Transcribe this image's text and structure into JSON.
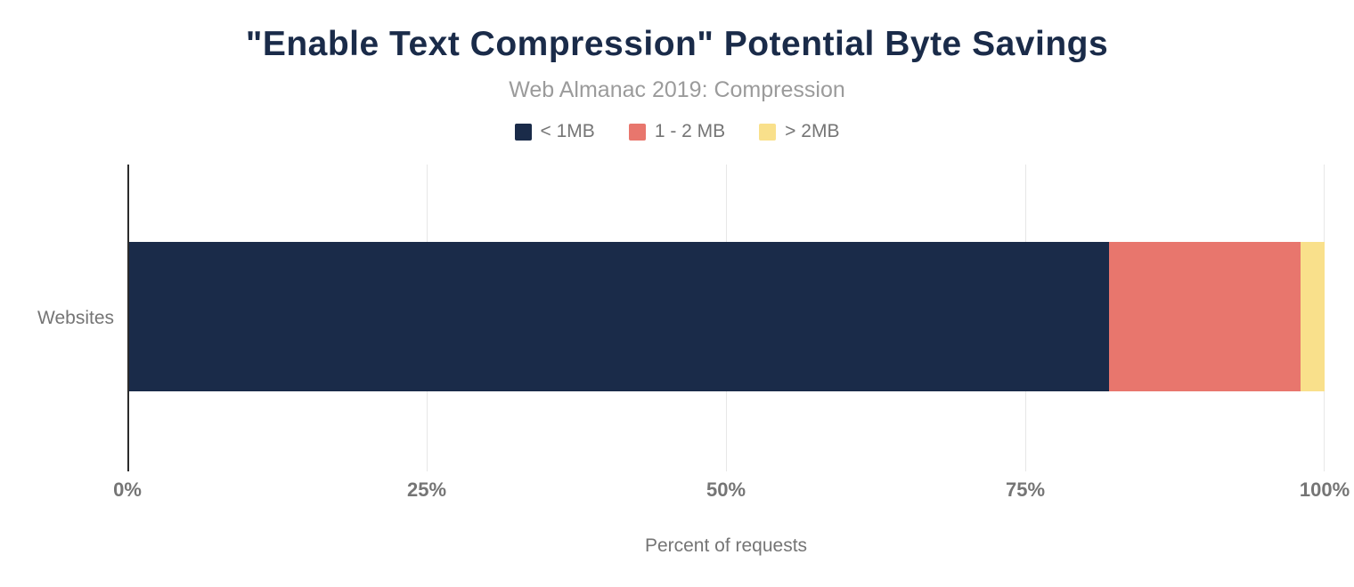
{
  "title": "\"Enable Text Compression\" Potential Byte Savings",
  "subtitle": "Web Almanac 2019: Compression",
  "legend": [
    {
      "label": "< 1MB",
      "color": "#1a2b49"
    },
    {
      "label": "1 - 2 MB",
      "color": "#e8766d"
    },
    {
      "label": "> 2MB",
      "color": "#f9e08b"
    }
  ],
  "colors": {
    "title": "#1a2b49",
    "subtitle": "#9b9b9b",
    "axis_text": "#757575",
    "gridline": "#e7e7e7",
    "axis_line": "#2b2b2b",
    "background": "#ffffff"
  },
  "chart_data": {
    "type": "bar",
    "orientation": "horizontal",
    "stacked": true,
    "title": "\"Enable Text Compression\" Potential Byte Savings",
    "subtitle": "Web Almanac 2019: Compression",
    "categories": [
      "Websites"
    ],
    "series": [
      {
        "name": "< 1MB",
        "values": [
          82
        ],
        "color": "#1a2b49"
      },
      {
        "name": "1 - 2 MB",
        "values": [
          16
        ],
        "color": "#e8766d"
      },
      {
        "name": "> 2MB",
        "values": [
          2
        ],
        "color": "#f9e08b"
      }
    ],
    "xlabel": "Percent of requests",
    "ylabel": "",
    "xlim": [
      0,
      100
    ],
    "xticks": [
      "0%",
      "25%",
      "50%",
      "75%",
      "100%"
    ],
    "grid": true,
    "legend_position": "top"
  }
}
